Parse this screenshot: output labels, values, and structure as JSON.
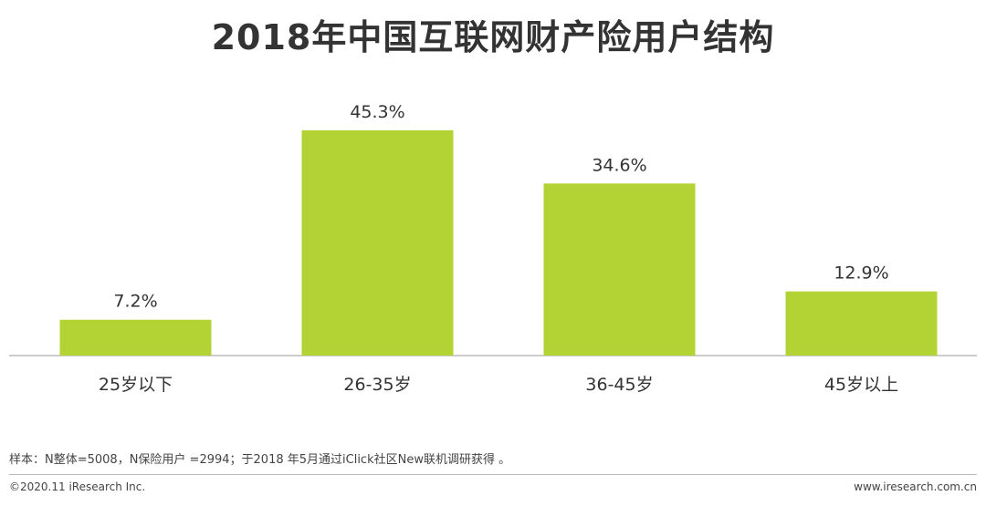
{
  "title": "2018年中国互联网财产险用户结构",
  "note": "样本：N整体=5008，N保险用户 =2994；于2018 年5月通过iClick社区New联机调研获得 。",
  "copyright": "©2020.11 iResearch Inc.",
  "website": "www.iresearch.com.cn",
  "colors": {
    "bar": "#b3d335",
    "axis": "#999999",
    "text": "#333333"
  },
  "chart_data": {
    "type": "bar",
    "categories": [
      "25岁以下",
      "26-35岁",
      "36-45岁",
      "45岁以上"
    ],
    "values": [
      7.2,
      45.3,
      34.6,
      12.9
    ],
    "data_labels": [
      "7.2%",
      "45.3%",
      "34.6%",
      "12.9%"
    ],
    "ylim": [
      0,
      55
    ],
    "grid": false
  }
}
